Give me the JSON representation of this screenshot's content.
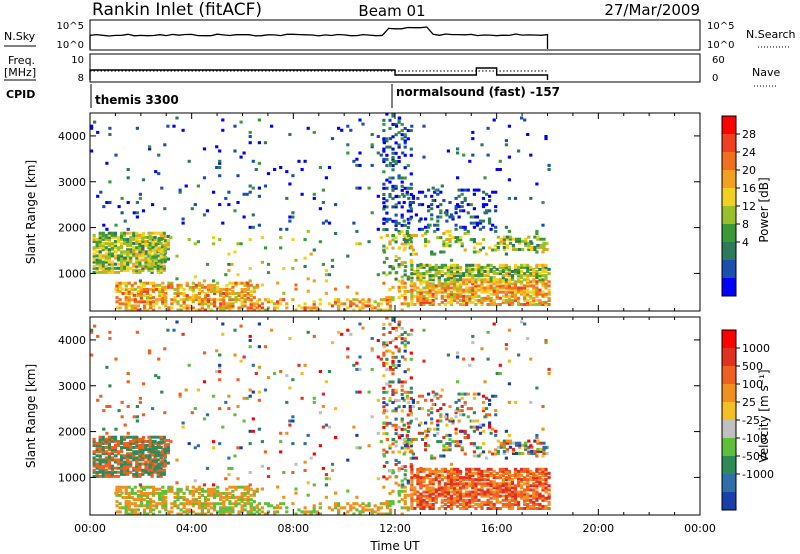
{
  "header": {
    "title": "Rankin Inlet (fitACF)",
    "beam": "Beam 01",
    "date": "27/Mar/2009"
  },
  "strip_labels": {
    "nsky": "N.Sky",
    "nsky_ticks": [
      "10^5",
      "10^0"
    ],
    "nsearch": "N.Search",
    "nsearch_ticks": [
      "10^5",
      "10^0"
    ],
    "freq_line1": "Freq.",
    "freq_line2": "[MHz]",
    "freq_ticks": [
      "10",
      "8"
    ],
    "nave": "Nave",
    "nave_ticks": [
      "60",
      "0"
    ],
    "cpid": "CPID",
    "cpid_segments": [
      {
        "label": "themis 3300",
        "start_hour": 0
      },
      {
        "label": "normalsound (fast) -157",
        "start_hour": 12
      }
    ]
  },
  "chart_data": [
    {
      "type": "heatmap",
      "name": "power",
      "ylabel": "Slant Range [km]",
      "xlabel": "",
      "ylim": [
        180,
        4500
      ],
      "yticks": [
        "4000",
        "3000",
        "2000",
        "1000"
      ],
      "colorbar_label": "Power [dB]",
      "colorbar_ticks": [
        "28",
        "24",
        "20",
        "16",
        "12",
        "8",
        "4"
      ],
      "colors": [
        "#0000ff",
        "#1a4fb0",
        "#2c7a5a",
        "#3a9a3a",
        "#9bbf2a",
        "#f2d020",
        "#f2a020",
        "#f07020",
        "#f04020",
        "#ff0000"
      ]
    },
    {
      "type": "heatmap",
      "name": "velocity",
      "ylabel": "Slant Range [km]",
      "xlabel": "Time UT",
      "ylim": [
        180,
        4500
      ],
      "yticks": [
        "4000",
        "3000",
        "2000",
        "1000"
      ],
      "xticks": [
        "00:00",
        "04:00",
        "08:00",
        "12:00",
        "16:00",
        "20:00",
        "00:00"
      ],
      "colorbar_label": "Velocity [m s⁻¹]",
      "colorbar_ticks": [
        "1000",
        "500",
        "100",
        "25",
        "-25",
        "-100",
        "-500",
        "-1000"
      ],
      "colors": [
        "#1a3faa",
        "#2e6fa8",
        "#2f8a5a",
        "#5fbf3a",
        "#c0c0c0",
        "#f2c020",
        "#f09020",
        "#f06020",
        "#e03020",
        "#ff0000"
      ]
    }
  ]
}
